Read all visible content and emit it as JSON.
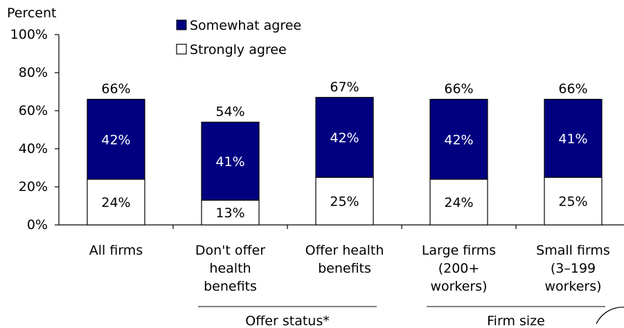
{
  "chart_data": {
    "type": "bar",
    "stacked": true,
    "ylabel": "Percent",
    "ylim": [
      0,
      100
    ],
    "yticks": [
      "0%",
      "20%",
      "40%",
      "60%",
      "80%",
      "100%"
    ],
    "legend_position": "top",
    "categories": [
      [
        "All firms"
      ],
      [
        "Don't offer",
        "health",
        "benefits"
      ],
      [
        "Offer health",
        "benefits"
      ],
      [
        "Large firms",
        "(200+",
        "workers)"
      ],
      [
        "Small firms",
        "(3–199",
        "workers)"
      ]
    ],
    "groups": [
      {
        "label": "Offer status*",
        "from": 1,
        "to": 2
      },
      {
        "label": "Firm size",
        "from": 3,
        "to": 4
      }
    ],
    "series": [
      {
        "name": "Strongly agree",
        "color": "#ffffff",
        "values": [
          24,
          13,
          25,
          24,
          25
        ],
        "labels": [
          "24%",
          "13%",
          "25%",
          "24%",
          "25%"
        ]
      },
      {
        "name": "Somewhat agree",
        "color": "#000080",
        "values": [
          42,
          41,
          42,
          42,
          41
        ],
        "labels": [
          "42%",
          "41%",
          "42%",
          "42%",
          "41%"
        ]
      }
    ],
    "totals": [
      66,
      54,
      67,
      66,
      66
    ],
    "total_labels": [
      "66%",
      "54%",
      "67%",
      "66%",
      "66%"
    ]
  }
}
